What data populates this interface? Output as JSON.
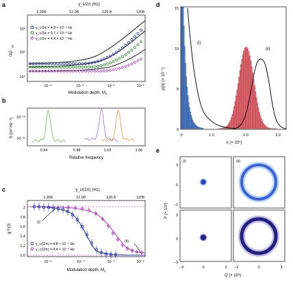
{
  "panels": {
    "a": {
      "letter": "a",
      "top_label": "γ_s/2π (Hz)",
      "top_ticks": [
        "1.208",
        "12.08",
        "120.8",
        "1208"
      ],
      "xlabel": "Modulation depth, M",
      "xlabel_sub": "s",
      "ylabel": "〈N〉",
      "ylabel_sub": "ss",
      "y_ticks": [
        "10⁴",
        "10⁵",
        "10⁶"
      ],
      "x_ticks": [
        "10⁻⁵",
        "10⁻⁴",
        "10⁻³",
        "10⁻²"
      ],
      "legend": [
        {
          "label": "γ_c/2π = 4.8 × 10⁻⁵ Hz",
          "color": "#2b3aa8"
        },
        {
          "label": "γ_c/2π = 9.7 × 10⁻⁵ Hz",
          "color": "#2f8a2f"
        },
        {
          "label": "γ_c/2π = 4.4 × 10⁻⁴ Hz",
          "color": "#b04ab8"
        }
      ]
    },
    "b": {
      "letter": "b",
      "xlabel": "Relative frequency",
      "ylabel": "S (m² Hz⁻¹)",
      "y_ticks": [
        "10⁻¹⁹",
        "10⁻²¹"
      ],
      "x_ticks": [
        "0.94",
        "0.98",
        "1.02",
        "1.06"
      ],
      "peaks": [
        {
          "color": "#5aae3a",
          "center": 0.955
        },
        {
          "color": "#9a55c0",
          "center": 1.018
        },
        {
          "color": "#f08a1a",
          "center": 1.038
        }
      ]
    },
    "c": {
      "letter": "c",
      "top_label": "γ_s/(2π) (Hz)",
      "top_ticks": [
        "1.208",
        "12.08",
        "120.8",
        "1208"
      ],
      "xlabel": "Modulation depth, M",
      "xlabel_sub": "s",
      "ylabel": "g⁽²⁾(0)",
      "y_ticks": [
        "1.0",
        "1.2",
        "1.4",
        "1.6",
        "1.8",
        "2"
      ],
      "x_ticks": [
        "10⁻⁵",
        "10⁻⁴",
        "10⁻³",
        "10⁻²"
      ],
      "annot_i": "(i)",
      "annot_ii": "(ii)",
      "legend": [
        {
          "label": "γ_c/(2π) = 4.8 × 10⁻⁵ Hz",
          "color": "#2b3aa8"
        },
        {
          "label": "γ_c/(2π) = 4.4 × 10⁻⁴ Hz",
          "color": "#b04ab8"
        }
      ]
    },
    "d": {
      "letter": "d",
      "xlabel": "n (× 10⁶)",
      "ylabel": "p(n) (× 10⁻⁷)",
      "y_ticks": [
        "0",
        "5",
        "10",
        "15"
      ],
      "x_ticks": [
        "0",
        "1.0",
        "2.0",
        "3.0"
      ],
      "annot_i": "(i)",
      "annot_ii": "(ii)",
      "color_i": "#2a5fa8",
      "color_ii": "#c0303a"
    },
    "e": {
      "letter": "e",
      "ylabel": "P (× 10³)",
      "xlabel": "Q (× 10³)",
      "y_ticks": [
        "3",
        "0",
        "−3"
      ],
      "x_ticks": [
        "−3",
        "0",
        "3"
      ],
      "annot_i": "(i)",
      "annot_ii": "(ii)"
    }
  }
}
